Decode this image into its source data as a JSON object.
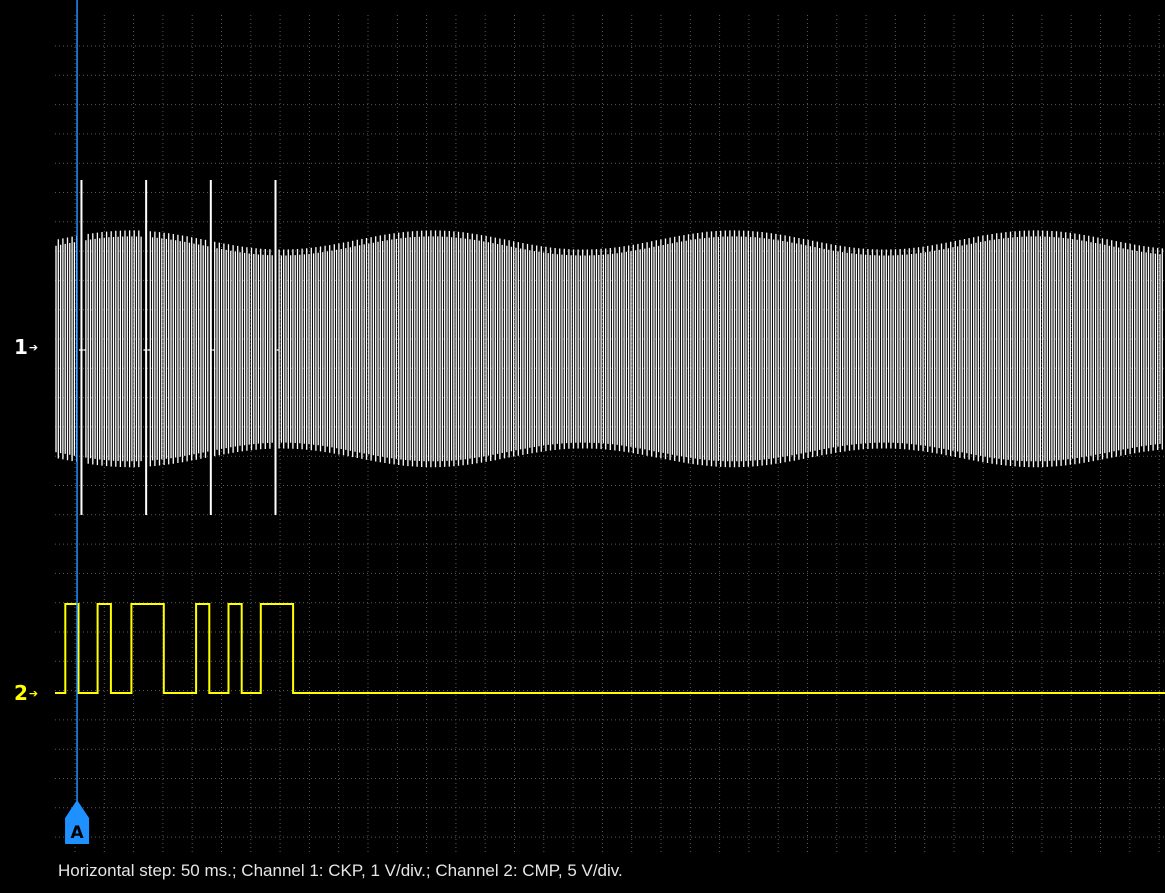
{
  "channels": [
    {
      "label": "1",
      "arrow": "➔",
      "color": "#ffffff"
    },
    {
      "label": "2",
      "arrow": "➔",
      "color": "#ffff00"
    }
  ],
  "cursor": {
    "label": "A",
    "color": "#1e90ff",
    "time_ms": 15
  },
  "status_text": "Horizontal step: 50 ms.; Channel 1: CKP, 1 V/div.; Channel 2: CMP, 5 V/div.",
  "colors": {
    "background": "#000000",
    "grid": "#5a5a5a",
    "ch1": "#ffffff",
    "ch2": "#ffff00",
    "cursor": "#1e90ff"
  },
  "chart_data": {
    "type": "line",
    "title": "",
    "xlabel": "",
    "ylabel": "",
    "grid": true,
    "x_step_ms": 50,
    "series": [
      {
        "name": "CKP",
        "volts_per_div": 1,
        "waveform": "crank sensor tooth signal, ~58 teeth per revolution with missing-tooth gaps",
        "gap_times_ms": [
          18,
          62,
          106,
          150
        ],
        "peak_amplitude_div": 2.3
      },
      {
        "name": "CMP",
        "volts_per_div": 5,
        "high_intervals_ms": [
          [
            7,
            16
          ],
          [
            29,
            38
          ],
          [
            52,
            74
          ],
          [
            96,
            105
          ],
          [
            118,
            127
          ],
          [
            140,
            162
          ]
        ],
        "low_level_div": 0,
        "high_level_div": 1
      }
    ]
  }
}
